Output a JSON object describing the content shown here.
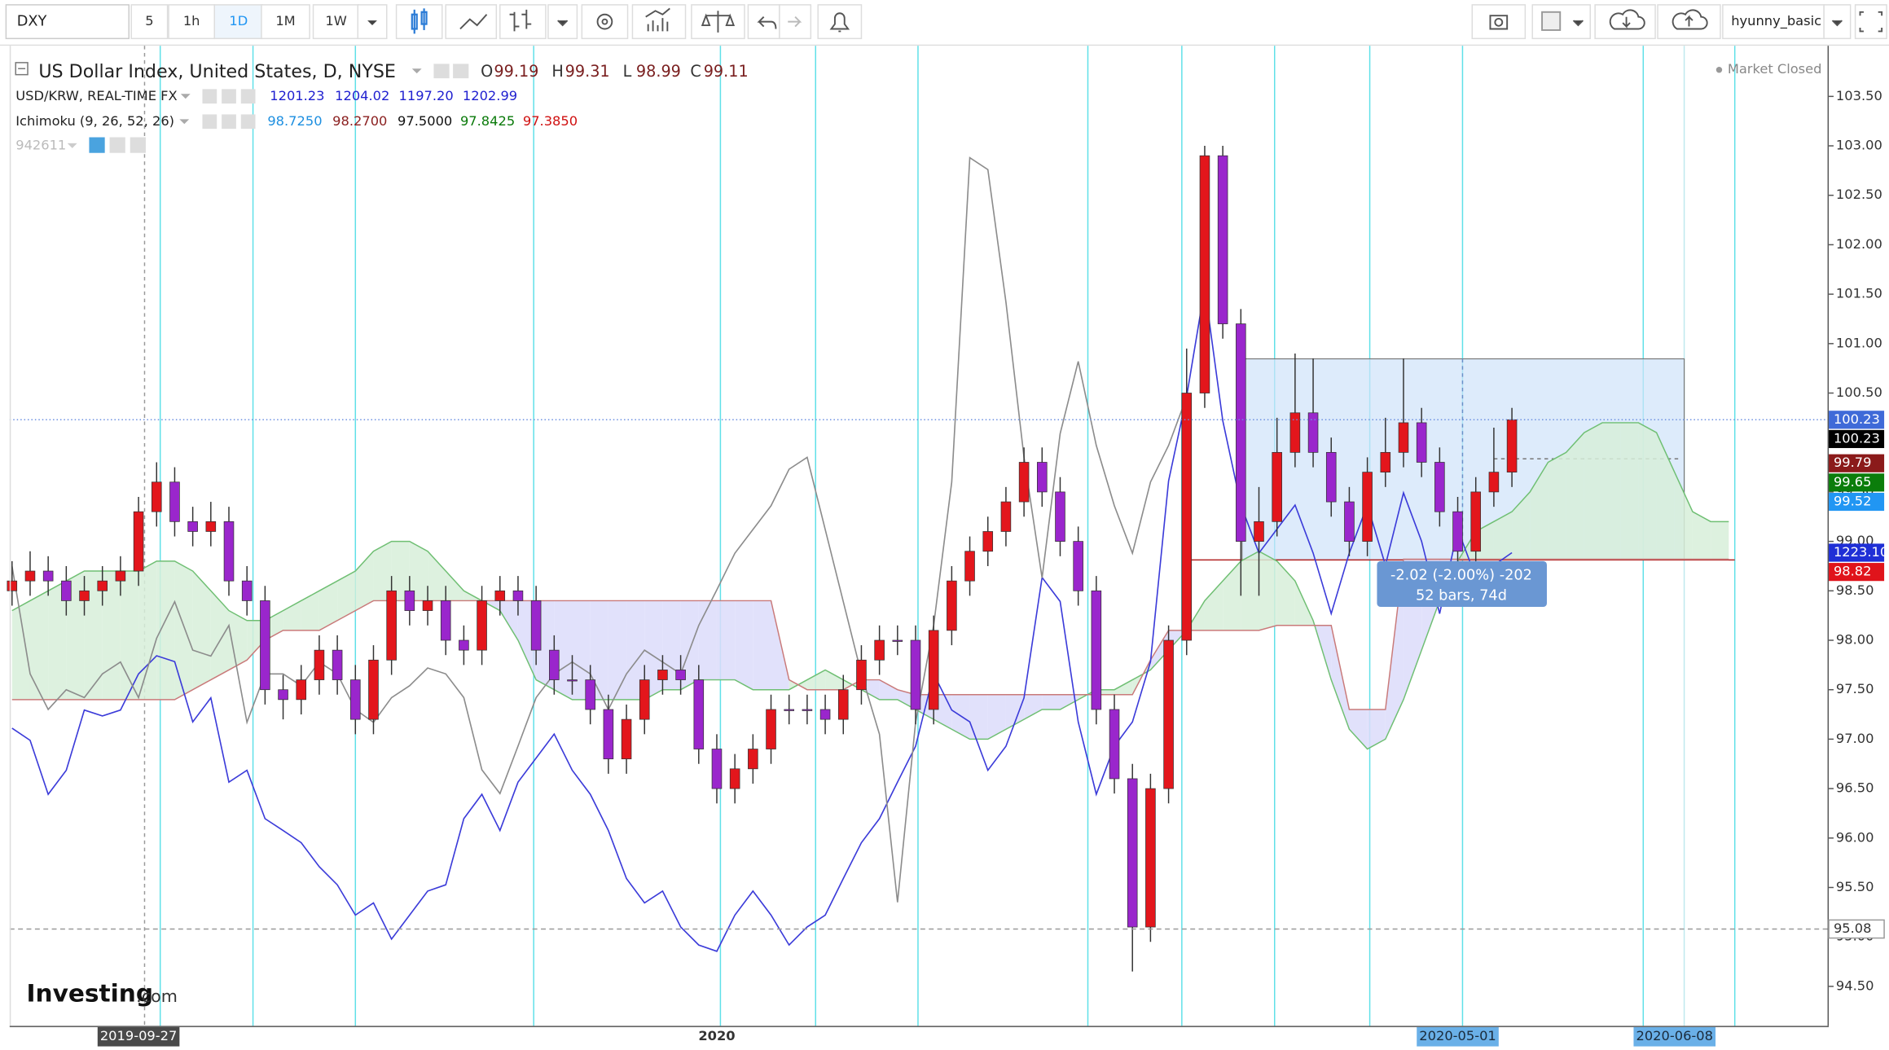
{
  "toolbar": {
    "symbol": "DXY",
    "intervals": [
      "5",
      "1h",
      "1D",
      "1M",
      "1W"
    ],
    "user": "hyunny_basic"
  },
  "legend": {
    "main": {
      "title": "US Dollar Index, United States, D, NYSE",
      "ohlc": [
        [
          "O",
          "99.19"
        ],
        [
          "H",
          "99.31"
        ],
        [
          "L",
          "98.99"
        ],
        [
          "C",
          "99.11"
        ]
      ]
    },
    "krw": {
      "title": "USD/KRW, REAL-TIME FX",
      "values": [
        "1201.23",
        "1204.02",
        "1197.20",
        "1202.99"
      ]
    },
    "ichimoku": {
      "title": "Ichimoku (9, 26, 52, 26)",
      "values": [
        "98.7250",
        "98.2700",
        "97.5000",
        "97.8425",
        "97.3850"
      ]
    },
    "extra": {
      "title": "942611"
    }
  },
  "status": "Market Closed",
  "measure": {
    "lines": [
      "-2.02 (-2.00%) -202",
      "52 bars, 74d"
    ]
  },
  "logo": {
    "brand": "Investing",
    "suffix": ".com"
  },
  "chart_data": {
    "type": "candlestick",
    "title": "US Dollar Index, United States, D, NYSE",
    "up_color": "#e3161c",
    "down_color": "#9a26cc",
    "categories": [
      null,
      null,
      null,
      null,
      null,
      null,
      null,
      "2019-09-27",
      null,
      null,
      null,
      null,
      null,
      null,
      null,
      null,
      null,
      null,
      null,
      null,
      null,
      null,
      null,
      null,
      null,
      null,
      null,
      null,
      null,
      null,
      null,
      null,
      null,
      null,
      null,
      null,
      null,
      null,
      null,
      "2020",
      null,
      null,
      null,
      null,
      null,
      null,
      null,
      null,
      null,
      null,
      null,
      null,
      null,
      null,
      null,
      null,
      null,
      null,
      null,
      null,
      null,
      null,
      null,
      null,
      null,
      null,
      null,
      null,
      null,
      null,
      null,
      null,
      null,
      null,
      null,
      null,
      null,
      null,
      null,
      null,
      "2020-05-01",
      null,
      null,
      null,
      null,
      null,
      null,
      null,
      null,
      null,
      null,
      null,
      "2020-06-08",
      null,
      null,
      null
    ],
    "ohlc": [
      [
        98.5,
        98.8,
        98.35,
        98.6
      ],
      [
        98.6,
        98.9,
        98.45,
        98.7
      ],
      [
        98.7,
        98.85,
        98.45,
        98.6
      ],
      [
        98.6,
        98.75,
        98.25,
        98.4
      ],
      [
        98.4,
        98.65,
        98.25,
        98.5
      ],
      [
        98.5,
        98.75,
        98.35,
        98.6
      ],
      [
        98.6,
        98.85,
        98.45,
        98.7
      ],
      [
        98.7,
        99.45,
        98.55,
        99.3
      ],
      [
        99.3,
        99.8,
        99.15,
        99.6
      ],
      [
        99.6,
        99.75,
        99.05,
        99.2
      ],
      [
        99.2,
        99.35,
        98.95,
        99.1
      ],
      [
        99.1,
        99.4,
        98.95,
        99.2
      ],
      [
        99.2,
        99.35,
        98.45,
        98.6
      ],
      [
        98.6,
        98.75,
        98.25,
        98.4
      ],
      [
        98.4,
        98.55,
        97.35,
        97.5
      ],
      [
        97.5,
        97.65,
        97.2,
        97.4
      ],
      [
        97.4,
        97.75,
        97.25,
        97.6
      ],
      [
        97.6,
        98.05,
        97.45,
        97.9
      ],
      [
        97.9,
        98.05,
        97.45,
        97.6
      ],
      [
        97.6,
        97.75,
        97.05,
        97.2
      ],
      [
        97.2,
        97.95,
        97.05,
        97.8
      ],
      [
        97.8,
        98.65,
        97.65,
        98.5
      ],
      [
        98.5,
        98.65,
        98.15,
        98.3
      ],
      [
        98.3,
        98.55,
        98.15,
        98.4
      ],
      [
        98.4,
        98.55,
        97.85,
        98.0
      ],
      [
        98.0,
        98.15,
        97.75,
        97.9
      ],
      [
        97.9,
        98.55,
        97.75,
        98.4
      ],
      [
        98.4,
        98.65,
        98.25,
        98.5
      ],
      [
        98.5,
        98.65,
        98.25,
        98.4
      ],
      [
        98.4,
        98.55,
        97.75,
        97.9
      ],
      [
        97.9,
        98.05,
        97.45,
        97.6
      ],
      [
        97.6,
        97.85,
        97.45,
        97.6
      ],
      [
        97.6,
        97.75,
        97.15,
        97.3
      ],
      [
        97.3,
        97.45,
        96.65,
        96.8
      ],
      [
        96.8,
        97.35,
        96.65,
        97.2
      ],
      [
        97.2,
        97.75,
        97.05,
        97.6
      ],
      [
        97.6,
        97.85,
        97.45,
        97.7
      ],
      [
        97.7,
        97.85,
        97.45,
        97.6
      ],
      [
        97.6,
        97.75,
        96.75,
        96.9
      ],
      [
        96.9,
        97.05,
        96.35,
        96.5
      ],
      [
        96.5,
        96.85,
        96.35,
        96.7
      ],
      [
        96.7,
        97.05,
        96.55,
        96.9
      ],
      [
        96.9,
        97.45,
        96.75,
        97.3
      ],
      [
        97.3,
        97.45,
        97.15,
        97.3
      ],
      [
        97.3,
        97.45,
        97.15,
        97.3
      ],
      [
        97.3,
        97.45,
        97.05,
        97.2
      ],
      [
        97.2,
        97.65,
        97.05,
        97.5
      ],
      [
        97.5,
        97.95,
        97.35,
        97.8
      ],
      [
        97.8,
        98.15,
        97.65,
        98.0
      ],
      [
        98.0,
        98.15,
        97.85,
        98.0
      ],
      [
        98.0,
        98.15,
        97.15,
        97.3
      ],
      [
        97.3,
        98.25,
        97.15,
        98.1
      ],
      [
        98.1,
        98.75,
        97.95,
        98.6
      ],
      [
        98.6,
        99.05,
        98.45,
        98.9
      ],
      [
        98.9,
        99.25,
        98.75,
        99.1
      ],
      [
        99.1,
        99.55,
        98.95,
        99.4
      ],
      [
        99.4,
        99.95,
        99.25,
        99.8
      ],
      [
        99.8,
        99.95,
        99.35,
        99.5
      ],
      [
        99.5,
        99.65,
        98.85,
        99.0
      ],
      [
        99.0,
        99.15,
        98.35,
        98.5
      ],
      [
        98.5,
        98.65,
        97.15,
        97.3
      ],
      [
        97.3,
        97.45,
        96.45,
        96.6
      ],
      [
        96.6,
        96.75,
        94.65,
        95.1
      ],
      [
        95.1,
        96.65,
        94.95,
        96.5
      ],
      [
        96.5,
        98.15,
        96.35,
        98.0
      ],
      [
        98.0,
        100.95,
        97.85,
        100.5
      ],
      [
        100.5,
        103.0,
        100.35,
        102.9
      ],
      [
        102.9,
        103.0,
        101.05,
        101.2
      ],
      [
        101.2,
        101.35,
        98.45,
        99.0
      ],
      [
        99.0,
        99.55,
        98.45,
        99.2
      ],
      [
        99.2,
        100.25,
        99.05,
        99.9
      ],
      [
        99.9,
        100.9,
        99.75,
        100.3
      ],
      [
        100.3,
        100.85,
        99.75,
        99.9
      ],
      [
        99.9,
        100.05,
        99.25,
        99.4
      ],
      [
        99.4,
        99.55,
        98.85,
        99.0
      ],
      [
        99.0,
        99.85,
        98.85,
        99.7
      ],
      [
        99.7,
        100.25,
        99.55,
        99.9
      ],
      [
        99.9,
        100.85,
        99.75,
        100.2
      ],
      [
        100.2,
        100.35,
        99.65,
        99.8
      ],
      [
        99.8,
        99.95,
        99.15,
        99.3
      ],
      [
        99.3,
        99.45,
        98.75,
        98.9
      ],
      [
        98.9,
        99.65,
        98.75,
        99.5
      ],
      [
        99.5,
        100.15,
        99.35,
        99.7
      ],
      [
        99.7,
        100.35,
        99.55,
        100.23
      ],
      null,
      null,
      null,
      null,
      null,
      null,
      null,
      null,
      null,
      null,
      null,
      null
    ],
    "cloud": {
      "span_a": [
        98.3,
        98.4,
        98.5,
        98.6,
        98.7,
        98.7,
        98.7,
        98.7,
        98.8,
        98.8,
        98.7,
        98.5,
        98.3,
        98.2,
        98.2,
        98.3,
        98.4,
        98.5,
        98.6,
        98.7,
        98.9,
        99.0,
        99.0,
        98.9,
        98.7,
        98.5,
        98.4,
        98.3,
        98.0,
        97.6,
        97.5,
        97.4,
        97.4,
        97.4,
        97.4,
        97.4,
        97.5,
        97.5,
        97.6,
        97.6,
        97.6,
        97.5,
        97.5,
        97.5,
        97.6,
        97.7,
        97.6,
        97.5,
        97.4,
        97.4,
        97.3,
        97.2,
        97.1,
        97.0,
        97.0,
        97.1,
        97.2,
        97.3,
        97.3,
        97.4,
        97.5,
        97.5,
        97.6,
        97.7,
        97.9,
        98.1,
        98.4,
        98.6,
        98.8,
        98.9,
        98.8,
        98.6,
        98.2,
        97.6,
        97.1,
        96.9,
        97.0,
        97.4,
        97.9,
        98.4,
        98.8,
        99.1,
        99.2,
        99.3,
        99.5,
        99.8,
        99.9,
        100.1,
        100.2,
        100.2,
        100.2,
        100.1,
        99.7,
        99.3,
        99.2,
        99.2
      ],
      "span_b": [
        97.4,
        97.4,
        97.4,
        97.4,
        97.4,
        97.4,
        97.4,
        97.4,
        97.4,
        97.4,
        97.5,
        97.6,
        97.7,
        97.8,
        98.0,
        98.1,
        98.1,
        98.1,
        98.2,
        98.3,
        98.4,
        98.4,
        98.4,
        98.4,
        98.4,
        98.4,
        98.4,
        98.4,
        98.4,
        98.4,
        98.4,
        98.4,
        98.4,
        98.4,
        98.4,
        98.4,
        98.4,
        98.4,
        98.4,
        98.4,
        98.4,
        98.4,
        98.4,
        97.6,
        97.5,
        97.5,
        97.5,
        97.6,
        97.6,
        97.5,
        97.45,
        97.45,
        97.45,
        97.45,
        97.45,
        97.45,
        97.45,
        97.45,
        97.45,
        97.45,
        97.45,
        97.45,
        97.45,
        97.8,
        98.1,
        98.1,
        98.1,
        98.1,
        98.1,
        98.1,
        98.15,
        98.15,
        98.15,
        98.15,
        97.3,
        97.3,
        97.3,
        98.82,
        98.82,
        98.82,
        98.82,
        98.82,
        98.82,
        98.82,
        98.82,
        98.82,
        98.82,
        98.82,
        98.82,
        98.82,
        98.82,
        98.82,
        98.82,
        98.82,
        98.82,
        98.82
      ],
      "colors": [
        "#d7efd9",
        "#dcdcfa"
      ],
      "line_colors": [
        "#6fbf73",
        "#c97a7a"
      ]
    },
    "series": [
      {
        "color": "#3b3bd9",
        "axis": "y2",
        "values": [
          1175.6,
          1172.3,
          1157.7,
          1164.2,
          1180.5,
          1178.9,
          1180.5,
          1190.3,
          1195.2,
          1193.6,
          1177.3,
          1183.8,
          1161.0,
          1164.2,
          1151.1,
          1147.9,
          1144.6,
          1138.1,
          1133.2,
          1125.0,
          1128.3,
          1118.5,
          1125.0,
          1131.5,
          1133.2,
          1151.1,
          1157.7,
          1147.9,
          1161.0,
          1167.5,
          1174.0,
          1164.2,
          1157.7,
          1147.9,
          1134.9,
          1128.3,
          1131.5,
          1121.8,
          1116.9,
          1115.2,
          1125.0,
          1131.5,
          1125.0,
          1116.9,
          1121.8,
          1125.0,
          1134.9,
          1144.6,
          1151.1,
          1161.0,
          1170.7,
          1190.3,
          1180.5,
          1177.3,
          1164.2,
          1170.7,
          1183.8,
          1216.4,
          1209.9,
          1177.3,
          1157.7,
          1170.7,
          1177.3,
          1193.6,
          1242.5,
          1265.4,
          1294.8,
          1258.8,
          1236.0,
          1223.0,
          1229.5,
          1236.0,
          1223.0,
          1206.6,
          1223.0,
          1236.0,
          1219.7,
          1239.3,
          1226.2,
          1206.6,
          1229.5,
          1216.4,
          1219.7,
          1223.1,
          null,
          null,
          null,
          null,
          null,
          null,
          null,
          null,
          null,
          null,
          null,
          null
        ]
      },
      {
        "color": "#8c8c8c",
        "values": [
          98.75,
          97.66,
          97.3,
          97.5,
          97.42,
          97.66,
          97.78,
          97.42,
          98.02,
          98.39,
          97.9,
          97.84,
          98.15,
          97.17,
          97.66,
          97.66,
          97.54,
          97.78,
          97.66,
          97.3,
          97.17,
          97.42,
          97.54,
          97.72,
          97.66,
          97.42,
          96.69,
          96.45,
          96.93,
          97.42,
          97.66,
          97.78,
          97.66,
          97.3,
          97.66,
          97.9,
          97.78,
          97.66,
          98.15,
          98.51,
          98.88,
          99.12,
          99.36,
          99.73,
          99.85,
          99.12,
          98.39,
          97.66,
          97.05,
          95.35,
          97.17,
          98.15,
          99.6,
          102.88,
          102.76,
          101.42,
          99.85,
          98.63,
          100.09,
          100.82,
          99.97,
          99.36,
          98.88,
          99.6,
          99.97,
          100.46,
          null,
          null,
          null,
          null,
          null,
          null,
          null,
          null,
          null,
          null,
          null,
          null,
          null,
          null,
          null,
          null,
          null,
          null,
          null,
          null,
          null,
          null,
          null,
          null,
          null,
          null,
          null,
          null,
          null,
          null
        ]
      }
    ],
    "ylim": [
      94.1,
      104.0
    ],
    "y2lim": [
      1095,
      1360
    ],
    "yticks": [
      {
        "value": 94.5,
        "label": "94.50"
      },
      {
        "value": 95,
        "label": "95.00"
      },
      {
        "value": 95.5,
        "label": "95.50"
      },
      {
        "value": 96,
        "label": "96.00"
      },
      {
        "value": 96.5,
        "label": "96.50"
      },
      {
        "value": 97,
        "label": "97.00"
      },
      {
        "value": 97.5,
        "label": "97.50"
      },
      {
        "value": 98,
        "label": "98.00"
      },
      {
        "value": 98.5,
        "label": "98.50"
      },
      {
        "value": 99,
        "label": "99.00"
      },
      {
        "value": 99.5,
        "label": "99.50"
      },
      {
        "value": 100,
        "label": "100.00"
      },
      {
        "value": 100.5,
        "label": "100.50"
      },
      {
        "value": 101,
        "label": "101.00"
      },
      {
        "value": 101.5,
        "label": "101.50"
      },
      {
        "value": 102,
        "label": "102.00"
      },
      {
        "value": 102.5,
        "label": "102.50"
      },
      {
        "value": 103,
        "label": "103.00"
      },
      {
        "value": 103.5,
        "label": "103.50"
      }
    ],
    "price_labels": [
      {
        "value": 100.23,
        "background": "#3f6ad8",
        "color": "#ffffff",
        "guide": "dotted"
      },
      {
        "value": 100.23,
        "background": "#000000",
        "color": "#ffffff"
      },
      {
        "value": 99.79,
        "background": "#8b1a1a",
        "color": "#ffffff"
      },
      {
        "value": 99.65,
        "background": "#0b7d0b",
        "color": "#ffffff"
      },
      {
        "value": 99.52,
        "background": "#2196f3",
        "color": "#ffffff"
      },
      {
        "value": 1223.1,
        "label": "1223.10",
        "axis": "y2",
        "background": "#1f2fd6",
        "color": "#ffffff"
      },
      {
        "value": 98.82,
        "background": "#e0141b",
        "color": "#ffffff"
      },
      {
        "value": 95.08,
        "background": "#ffffff",
        "color": "#333333",
        "guide": "dashed"
      }
    ]
  }
}
